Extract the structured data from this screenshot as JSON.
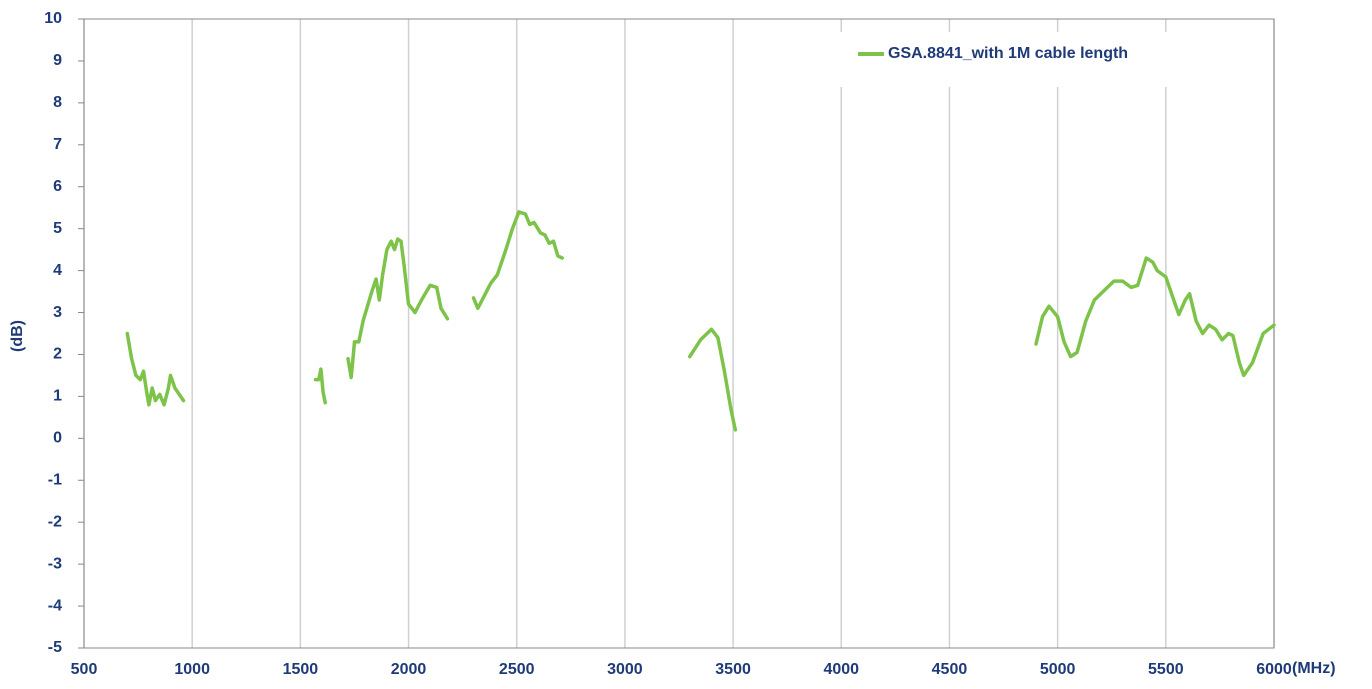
{
  "chart_data": {
    "type": "line",
    "x_label": "(MHz)",
    "y_label": "(dB)",
    "xlim": [
      500,
      6000
    ],
    "xticks": [
      500,
      1000,
      1500,
      2000,
      2500,
      3000,
      3500,
      4000,
      4500,
      5000,
      5500,
      6000
    ],
    "ylim": [
      -5,
      10
    ],
    "yticks": [
      -5,
      -4,
      -3,
      -2,
      -1,
      0,
      1,
      2,
      3,
      4,
      5,
      6,
      7,
      8,
      9,
      10
    ],
    "grid": "x",
    "legend": "upper right",
    "x": [
      700,
      720,
      740,
      760,
      775,
      790,
      800,
      815,
      830,
      850,
      870,
      890,
      900,
      920,
      960,
      null,
      1570,
      1585,
      1595,
      1605,
      1615,
      null,
      1720,
      1735,
      1750,
      1770,
      1790,
      1830,
      1850,
      1865,
      1880,
      1900,
      1920,
      1935,
      1950,
      1965,
      1980,
      2000,
      2030,
      2060,
      2100,
      2130,
      2150,
      2180,
      null,
      2300,
      2320,
      2350,
      2380,
      2410,
      2450,
      2480,
      2510,
      2540,
      2560,
      2580,
      2610,
      2630,
      2650,
      2670,
      2690,
      2710,
      null,
      3300,
      3350,
      3400,
      3430,
      3460,
      3490,
      3510,
      null,
      4900,
      4930,
      4960,
      5000,
      5030,
      5060,
      5090,
      5130,
      5170,
      5220,
      5260,
      5300,
      5340,
      5370,
      5410,
      5440,
      5460,
      5500,
      5530,
      5560,
      5590,
      5610,
      5640,
      5670,
      5700,
      5730,
      5760,
      5790,
      5810,
      5840,
      5860,
      5900,
      5950,
      6000
    ],
    "series": [
      {
        "name": "GSA.8841_with 1M cable length",
        "color": "#7dc34a",
        "values": [
          2.5,
          1.9,
          1.5,
          1.4,
          1.6,
          1.1,
          0.8,
          1.2,
          0.9,
          1.05,
          0.8,
          1.2,
          1.5,
          1.2,
          0.9,
          null,
          1.4,
          1.4,
          1.65,
          1.1,
          0.85,
          null,
          1.9,
          1.45,
          2.3,
          2.3,
          2.8,
          3.5,
          3.8,
          3.3,
          3.9,
          4.5,
          4.7,
          4.5,
          4.75,
          4.7,
          4.1,
          3.2,
          3.0,
          3.3,
          3.65,
          3.6,
          3.1,
          2.85,
          null,
          3.35,
          3.1,
          3.4,
          3.7,
          3.9,
          4.5,
          5.0,
          5.4,
          5.35,
          5.1,
          5.15,
          4.9,
          4.85,
          4.65,
          4.7,
          4.35,
          4.3,
          null,
          1.95,
          2.35,
          2.6,
          2.4,
          1.6,
          0.7,
          0.2,
          null,
          2.25,
          2.9,
          3.15,
          2.9,
          2.3,
          1.95,
          2.05,
          2.8,
          3.3,
          3.55,
          3.75,
          3.75,
          3.6,
          3.65,
          4.3,
          4.2,
          4.0,
          3.85,
          3.4,
          2.95,
          3.3,
          3.45,
          2.8,
          2.5,
          2.7,
          2.6,
          2.35,
          2.5,
          2.45,
          1.8,
          1.5,
          1.8,
          2.5,
          2.7
        ]
      }
    ]
  }
}
